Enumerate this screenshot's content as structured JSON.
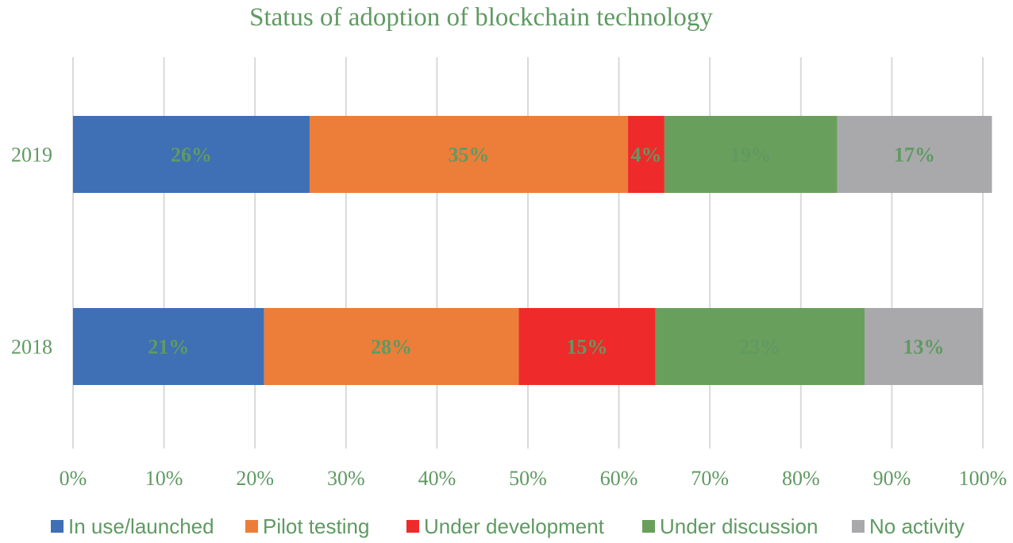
{
  "chart_data": {
    "type": "bar",
    "orientation": "horizontal",
    "stacked": true,
    "title": "Status of adoption of blockchain technology",
    "categories": [
      "2019",
      "2018"
    ],
    "series": [
      {
        "name": "In use/launched",
        "values": [
          26,
          21
        ],
        "labels": [
          "26%",
          "21%"
        ]
      },
      {
        "name": "Pilot testing",
        "values": [
          35,
          28
        ],
        "labels": [
          "35%",
          "28%"
        ]
      },
      {
        "name": "Under development",
        "values": [
          4,
          15
        ],
        "labels": [
          "4%",
          "15%"
        ]
      },
      {
        "name": "Under discussion",
        "values": [
          19,
          23
        ],
        "labels": [
          "19%",
          "23%"
        ]
      },
      {
        "name": "No activity",
        "values": [
          17,
          13
        ],
        "labels": [
          "17%",
          "13%"
        ]
      }
    ],
    "xlim": [
      0,
      100
    ],
    "xticks": [
      "0%",
      "10%",
      "20%",
      "30%",
      "40%",
      "50%",
      "60%",
      "70%",
      "80%",
      "90%",
      "100%"
    ],
    "grid": true,
    "legend_position": "bottom"
  },
  "colors": {
    "series": [
      "#3f6fb4",
      "#ec7e39",
      "#ef2a2a",
      "#699f5c",
      "#a9a9ab"
    ],
    "text": "#5f9a62",
    "grid": "#d9d9d9"
  }
}
